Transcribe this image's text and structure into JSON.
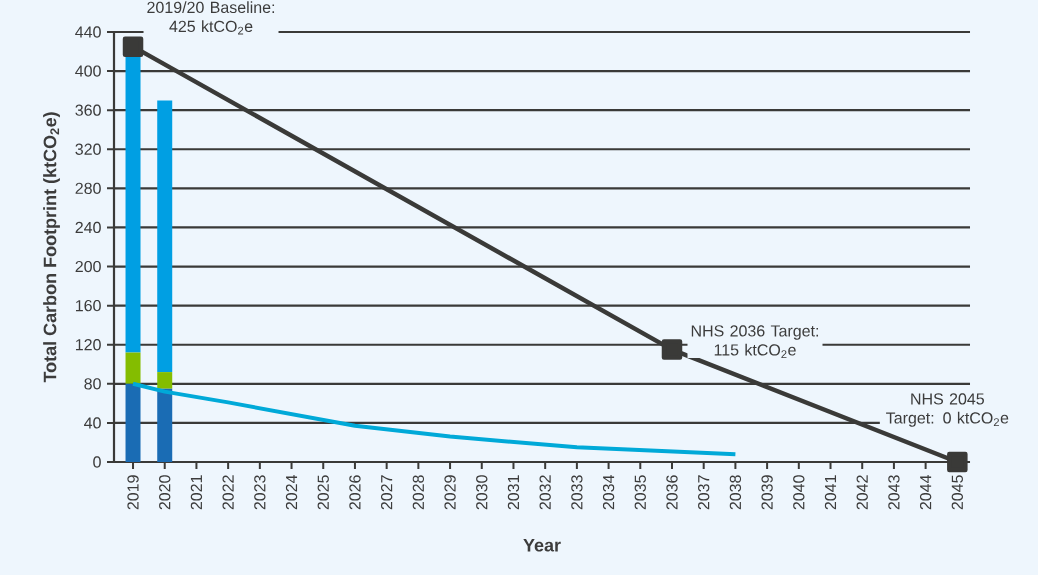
{
  "chart_data": {
    "type": "bar",
    "stacked": true,
    "x": [
      2019,
      2020
    ],
    "series": [
      {
        "color": "#1a6cb4",
        "values": [
          80,
          75
        ]
      },
      {
        "color": "#84bd00",
        "values": [
          32,
          17
        ]
      },
      {
        "color": "#009fe3",
        "values": [
          303,
          278
        ]
      },
      {
        "type": "line",
        "color": "#00a9d8",
        "marker": "none",
        "x": [
          2019,
          2020,
          2022,
          2026,
          2029,
          2033,
          2038
        ],
        "values": [
          80,
          72,
          61,
          37,
          26,
          15,
          8
        ]
      },
      {
        "type": "line",
        "color": "#3a3a38",
        "marker": "square",
        "x": [
          2019,
          2036,
          2045
        ],
        "values": [
          425,
          115,
          0
        ]
      }
    ],
    "xlim": [
      2018.4,
      2045.4
    ],
    "ylim": [
      0,
      440
    ],
    "xticks": [
      2019,
      2020,
      2021,
      2022,
      2023,
      2024,
      2025,
      2026,
      2027,
      2028,
      2029,
      2030,
      2031,
      2032,
      2033,
      2034,
      2035,
      2036,
      2037,
      2038,
      2039,
      2040,
      2041,
      2042,
      2043,
      2044,
      2045
    ],
    "yticks": [
      0,
      40,
      80,
      120,
      160,
      200,
      240,
      280,
      320,
      360,
      400,
      440
    ],
    "grid": "y",
    "xlabel": "Year",
    "ylabel": "Total Carbon Footprint (ktCO$_{2}$e)",
    "annotations": [
      {
        "text": "2019/20 Baseline: 425 ktCO$_{2}$e",
        "x": 2019,
        "y": 425
      },
      {
        "text": "NHS 2036 Target: 115 ktCO$_{2}$e",
        "x": 2036,
        "y": 115
      },
      {
        "text": "NHS 2045 Target: 0 ktCO$_{2}$e",
        "x": 2045,
        "y": 0
      }
    ]
  }
}
